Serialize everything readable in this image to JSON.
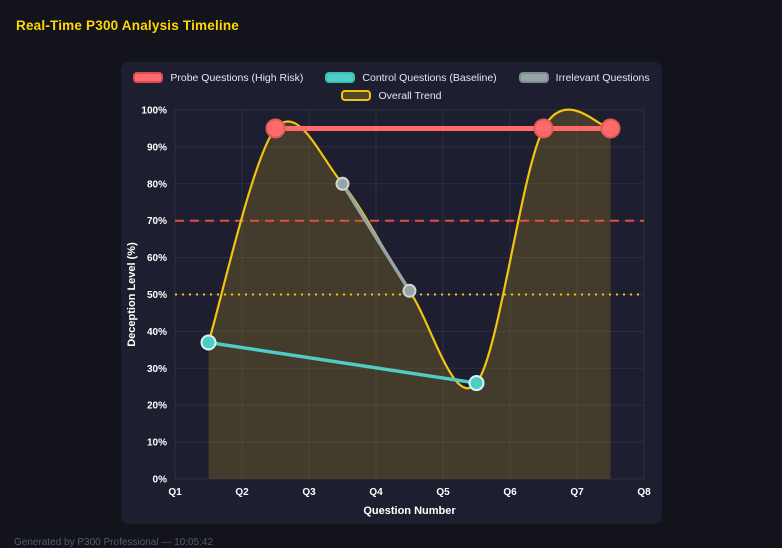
{
  "page": {
    "title": "Real-Time P300 Analysis Timeline",
    "footer": "Generated by P300 Professional — 10:05:42"
  },
  "chart_data": {
    "type": "line",
    "title": "Real-Time P300 Analysis Timeline",
    "xlabel": "Question Number",
    "ylabel": "Deception Level (%)",
    "xlim": [
      1,
      8
    ],
    "ylim": [
      0,
      100
    ],
    "x_ticks": [
      "Q1",
      "Q2",
      "Q3",
      "Q4",
      "Q5",
      "Q6",
      "Q7",
      "Q8"
    ],
    "x_tick_values": [
      1,
      2,
      3,
      4,
      5,
      6,
      7,
      8
    ],
    "y_ticks": [
      "0%",
      "10%",
      "20%",
      "30%",
      "40%",
      "50%",
      "60%",
      "70%",
      "80%",
      "90%",
      "100%"
    ],
    "y_tick_values": [
      0,
      10,
      20,
      30,
      40,
      50,
      60,
      70,
      80,
      90,
      100
    ],
    "legend_position": "top",
    "grid": true,
    "background": "#1e1e31",
    "series": [
      {
        "name": "Probe Questions (High Risk)",
        "color": "#ff6b6b",
        "x": [
          2.5,
          6.5,
          7.5
        ],
        "y": [
          95,
          95,
          95
        ],
        "line_width": 5,
        "marker_r": 9,
        "marker_border": "#e05a5a",
        "swatch_border": "#d95050"
      },
      {
        "name": "Control Questions (Baseline)",
        "color": "#4ecdc4",
        "x": [
          1.5,
          5.5
        ],
        "y": [
          37,
          26
        ],
        "line_width": 3.5,
        "marker_r": 7,
        "marker_border": "#d6f5f2",
        "swatch_border": "#3dbdb4"
      },
      {
        "name": "Irrelevant Questions",
        "color": "#95a5a6",
        "x": [
          3.5,
          4.5
        ],
        "y": [
          80,
          51
        ],
        "line_width": 3.5,
        "marker_r": 6,
        "marker_border": "#cdd6d6",
        "swatch_border": "#7f8c8d"
      },
      {
        "name": "Overall Trend",
        "color": "#f1c40f",
        "x": [
          1.5,
          2.5,
          3.5,
          4.5,
          5.5,
          6.5,
          7.5
        ],
        "y": [
          37,
          95,
          80,
          51,
          26,
          95,
          95
        ],
        "line_width": 2.2,
        "marker_r": 0,
        "smooth": true,
        "fill": true,
        "fill_color": "rgba(241,196,15,0.18)",
        "swatch_fill": "rgba(241,196,15,0.25)",
        "swatch_border": "#f1c40f"
      }
    ],
    "thresholds": [
      {
        "value": 70,
        "color": "#e74c3c",
        "style": "dashed"
      },
      {
        "value": 50,
        "color": "#f1c40f",
        "style": "dotted"
      }
    ]
  }
}
